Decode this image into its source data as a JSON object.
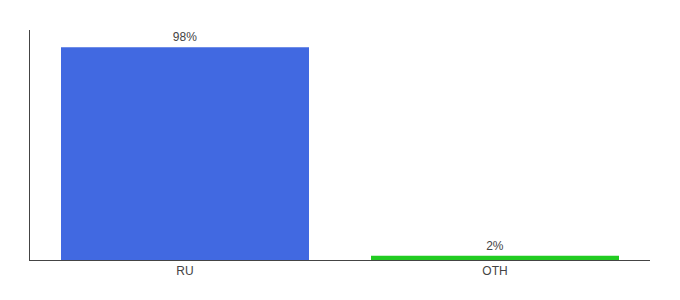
{
  "chart_data": {
    "type": "bar",
    "categories": [
      "RU",
      "OTH"
    ],
    "values": [
      98,
      2
    ],
    "value_labels": [
      "98%",
      "2%"
    ],
    "colors": [
      "#4169e1",
      "#22cc22"
    ],
    "ylim": [
      0,
      106
    ],
    "grid": false,
    "data_labels": true,
    "tick_labels": "x"
  }
}
